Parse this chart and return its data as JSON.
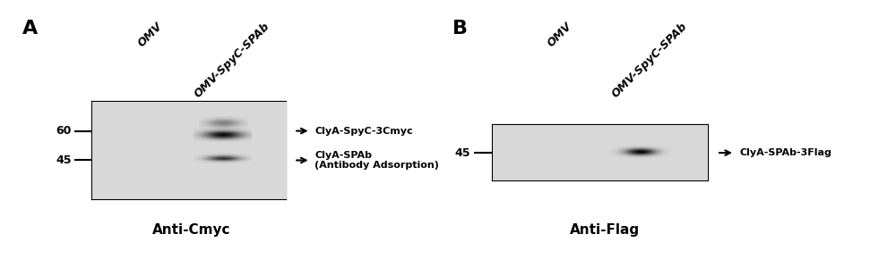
{
  "panel_A_label": "A",
  "panel_B_label": "B",
  "col_labels": [
    "OMV",
    "OMV-SpyC-SPAb"
  ],
  "marker_60": "60",
  "marker_45": "45",
  "band_A_upper_label": "ClyA-SpyC-3Cmyc",
  "band_A_lower_label": "ClyA-SPAb\n(Antibody Adsorption)",
  "band_B_label": "ClyA-SPAb-3Flag",
  "subtitle_A": "Anti-Cmyc",
  "subtitle_B": "Anti-Flag",
  "bg_color": "#ffffff",
  "gel_bg": "#d8d8d8",
  "band_dark": "#1a1a1a",
  "band_medium": "#555555"
}
